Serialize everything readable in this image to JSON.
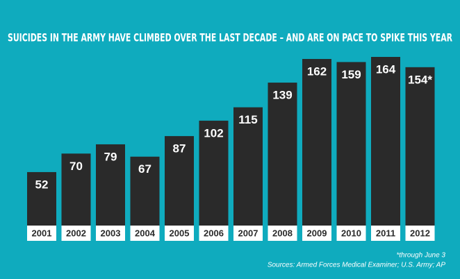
{
  "chart_data": {
    "type": "bar",
    "title": "SUICIDES IN THE ARMY HAVE CLIMBED OVER THE LAST DECADE – AND ARE ON PACE TO SPIKE THIS YEAR",
    "categories": [
      "2001",
      "2002",
      "2003",
      "2004",
      "2005",
      "2006",
      "2007",
      "2008",
      "2009",
      "2010",
      "2011",
      "2012"
    ],
    "values": [
      52,
      70,
      79,
      67,
      87,
      102,
      115,
      139,
      162,
      159,
      164,
      154
    ],
    "value_labels": [
      "52",
      "70",
      "79",
      "67",
      "87",
      "102",
      "115",
      "139",
      "162",
      "159",
      "164",
      "154*"
    ],
    "color": "#2a2a2a",
    "background": "#0fabbe",
    "notes": [
      "*through June 3",
      "Sources: Armed Forces Medical Examiner; U.S. Army; AP"
    ]
  }
}
